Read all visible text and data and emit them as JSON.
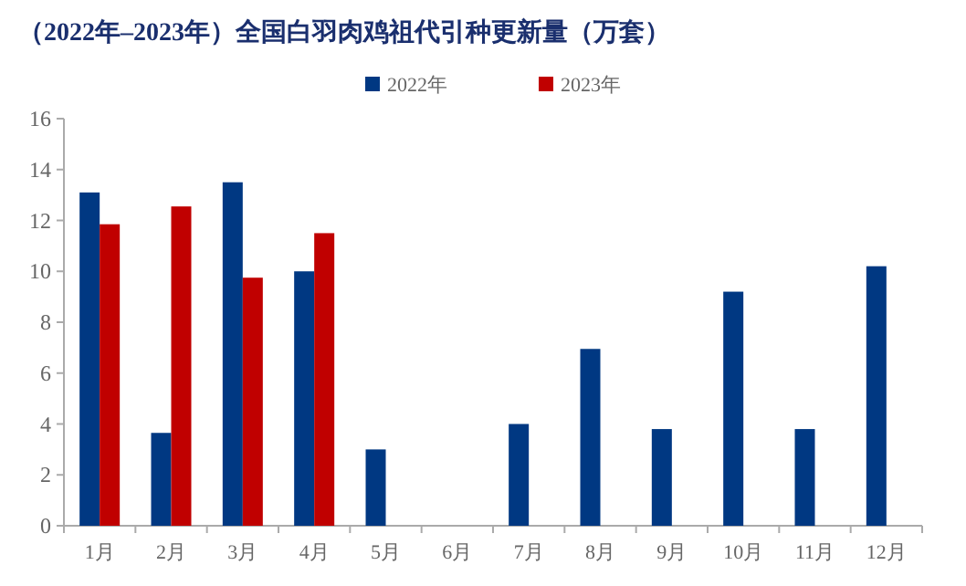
{
  "chart_data": {
    "type": "bar",
    "title": "（2022年–2023年）全国白羽肉鸡祖代引种更新量（万套）",
    "categories": [
      "1月",
      "2月",
      "3月",
      "4月",
      "5月",
      "6月",
      "7月",
      "8月",
      "9月",
      "10月",
      "11月",
      "12月"
    ],
    "series": [
      {
        "name": "2022年",
        "color": "#003882",
        "values": [
          13.1,
          3.65,
          13.5,
          10.0,
          3.0,
          null,
          4.0,
          6.95,
          3.8,
          9.2,
          3.8,
          10.2
        ]
      },
      {
        "name": "2023年",
        "color": "#c00000",
        "values": [
          11.85,
          12.55,
          9.75,
          11.5,
          null,
          null,
          null,
          null,
          null,
          null,
          null,
          null
        ]
      }
    ],
    "ylim": [
      0,
      16
    ],
    "yticks": [
      0,
      2,
      4,
      6,
      8,
      10,
      12,
      14,
      16
    ],
    "grid": false,
    "legend": "top"
  }
}
